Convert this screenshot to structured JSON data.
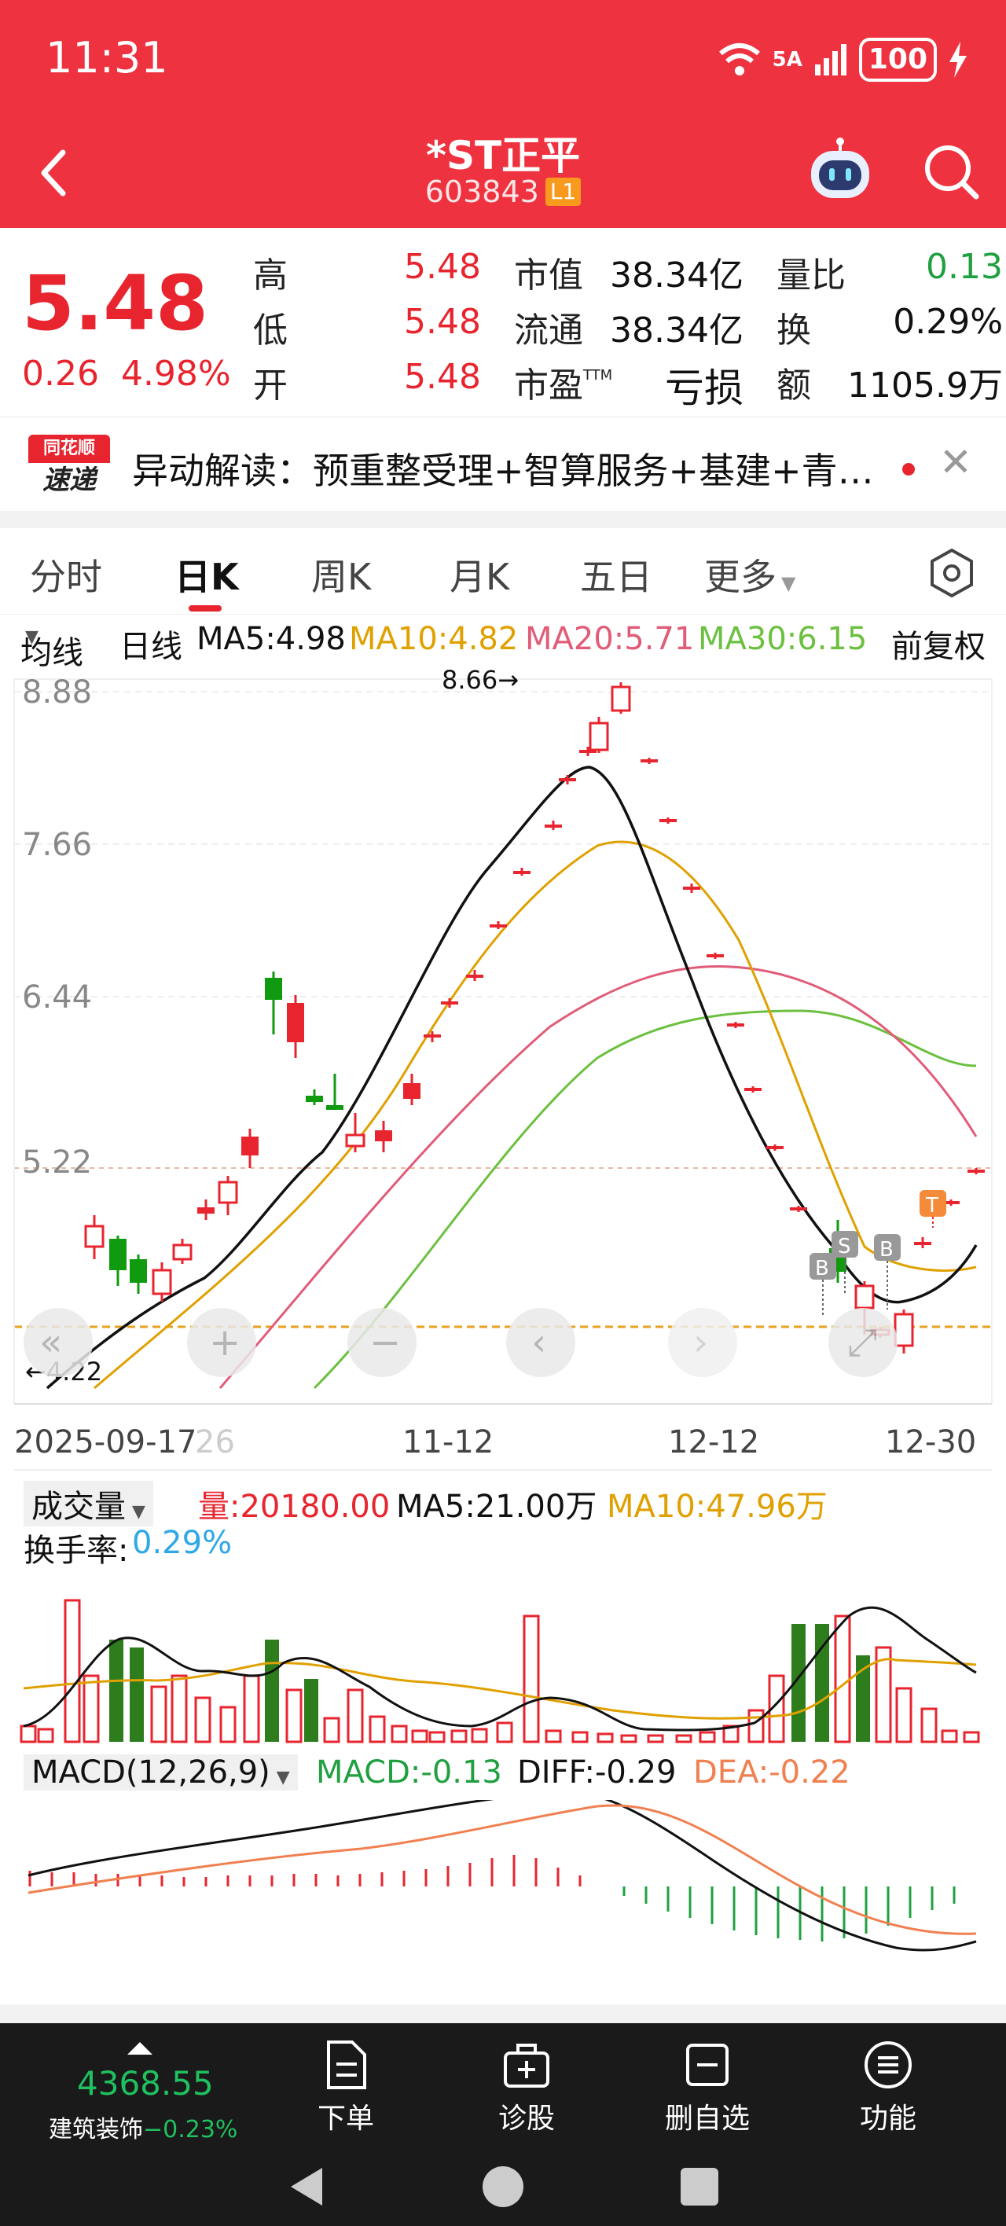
{
  "status_bar": {
    "time": "11:31",
    "network": "5A",
    "battery": "100"
  },
  "header": {
    "stock_name": "*ST正平",
    "stock_code": "603843",
    "level_badge": "L1",
    "back_icon": "back-chevron-icon",
    "robot_icon": "robot-assistant-icon",
    "search_icon": "search-icon"
  },
  "quote": {
    "price": "5.48",
    "change": "0.26",
    "change_pct": "4.98%",
    "high_label": "高",
    "high": "5.48",
    "low_label": "低",
    "low": "5.48",
    "open_label": "开",
    "open": "5.48",
    "mktcap_label": "市值",
    "mktcap": "38.34亿",
    "float_label": "流通",
    "float": "38.34亿",
    "pe_label": "市盈",
    "pe_sup": "TTM",
    "pe": "亏损",
    "volratio_label": "量比",
    "volratio": "0.13",
    "turnover_label": "换",
    "turnover": "0.29%",
    "amount_label": "额",
    "amount": "1105.9万"
  },
  "ticker": {
    "logo_line1": "同花顺",
    "logo_line2": "速递",
    "text": "异动解读：预重整受理+智算服务+基建+青…"
  },
  "tabs": [
    {
      "label": "分时"
    },
    {
      "label": "日K"
    },
    {
      "label": "周K"
    },
    {
      "label": "月K"
    },
    {
      "label": "五日"
    },
    {
      "label": "更多"
    }
  ],
  "ma_legend": {
    "mode": "均线",
    "period": "日线",
    "ma5": "MA5:4.98",
    "ma10": "MA10:4.82",
    "ma20": "MA20:5.71",
    "ma30": "MA30:6.15",
    "adjust": "前复权"
  },
  "kchart": {
    "y_ticks": [
      "8.88",
      "7.66",
      "6.44",
      "5.22"
    ],
    "high_marker": "8.66→",
    "low_marker": "←4.22",
    "x_ticks": [
      "2025-09-17",
      "11-12",
      "12-12",
      "12-30"
    ],
    "x_partial": "26",
    "flags": {
      "s": "S",
      "b": "B",
      "t": "T"
    },
    "controls": [
      "«",
      "+",
      "−",
      "‹",
      "›",
      "⤢"
    ]
  },
  "volume": {
    "selector": "成交量",
    "vol": "量:20180.00",
    "ma5": "MA5:21.00万",
    "ma10": "MA10:47.96万",
    "turnover_label": "换手率:",
    "turnover_val": "0.29%"
  },
  "macd": {
    "selector": "MACD(12,26,9)",
    "macd": "MACD:-0.13",
    "diff": "DIFF:-0.29",
    "dea": "DEA:-0.22"
  },
  "bottom": {
    "index_value": "4368.55",
    "index_name": "建筑装饰",
    "index_chg": "−0.23%",
    "btn_order": "下单",
    "btn_diagnose": "诊股",
    "btn_remove": "删自选",
    "btn_func": "功能"
  },
  "colors": {
    "red": "#ef3240",
    "up": "#e8252f",
    "down": "#109a10",
    "ma5": "#111111",
    "ma10": "#e0a000",
    "ma20": "#e05c78",
    "ma30": "#6cc040"
  }
}
